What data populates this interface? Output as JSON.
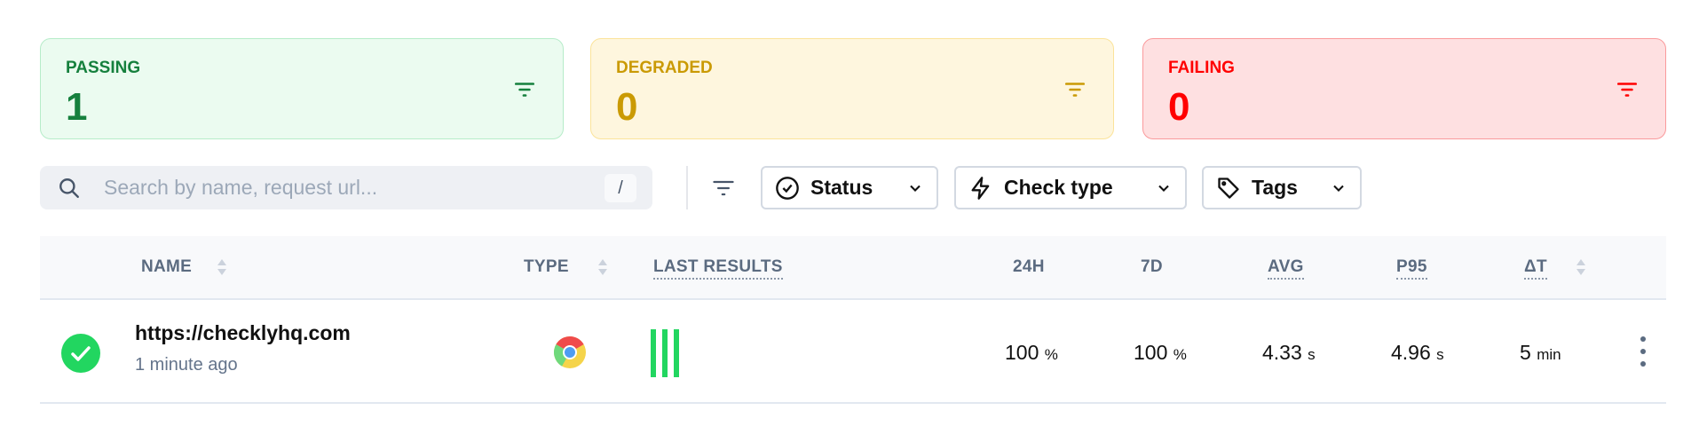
{
  "summary": [
    {
      "label": "PASSING",
      "count": "1",
      "color": "#15803d",
      "bg": "#ebfbf0",
      "border": "#b6ecc9"
    },
    {
      "label": "DEGRADED",
      "count": "0",
      "color": "#ca9a04",
      "bg": "#fef6de",
      "border": "#fbe39a"
    },
    {
      "label": "FAILING",
      "count": "0",
      "color": "#ff0000",
      "bg": "#fee0e1",
      "border": "#fa9a9c"
    }
  ],
  "search": {
    "placeholder": "Search by name, request url...",
    "shortcut": "/"
  },
  "filters": [
    {
      "label": "Status",
      "icon": "check-circle-icon"
    },
    {
      "label": "Check type",
      "icon": "bolt-icon"
    },
    {
      "label": "Tags",
      "icon": "tag-icon"
    }
  ],
  "table": {
    "columns": [
      "NAME",
      "TYPE",
      "LAST RESULTS",
      "24H",
      "7D",
      "AVG",
      "P95",
      "ΔT"
    ],
    "rows": [
      {
        "status": "passing",
        "name": "https://checklyhq.com",
        "updated": "1 minute ago",
        "type": "browser-chrome-icon",
        "last_results": [
          "pass",
          "pass",
          "pass"
        ],
        "h24": "100",
        "h24_unit": "%",
        "d7": "100",
        "d7_unit": "%",
        "avg": "4.33",
        "avg_unit": "s",
        "p95": "4.96",
        "p95_unit": "s",
        "dt": "5",
        "dt_unit": "min"
      }
    ]
  }
}
